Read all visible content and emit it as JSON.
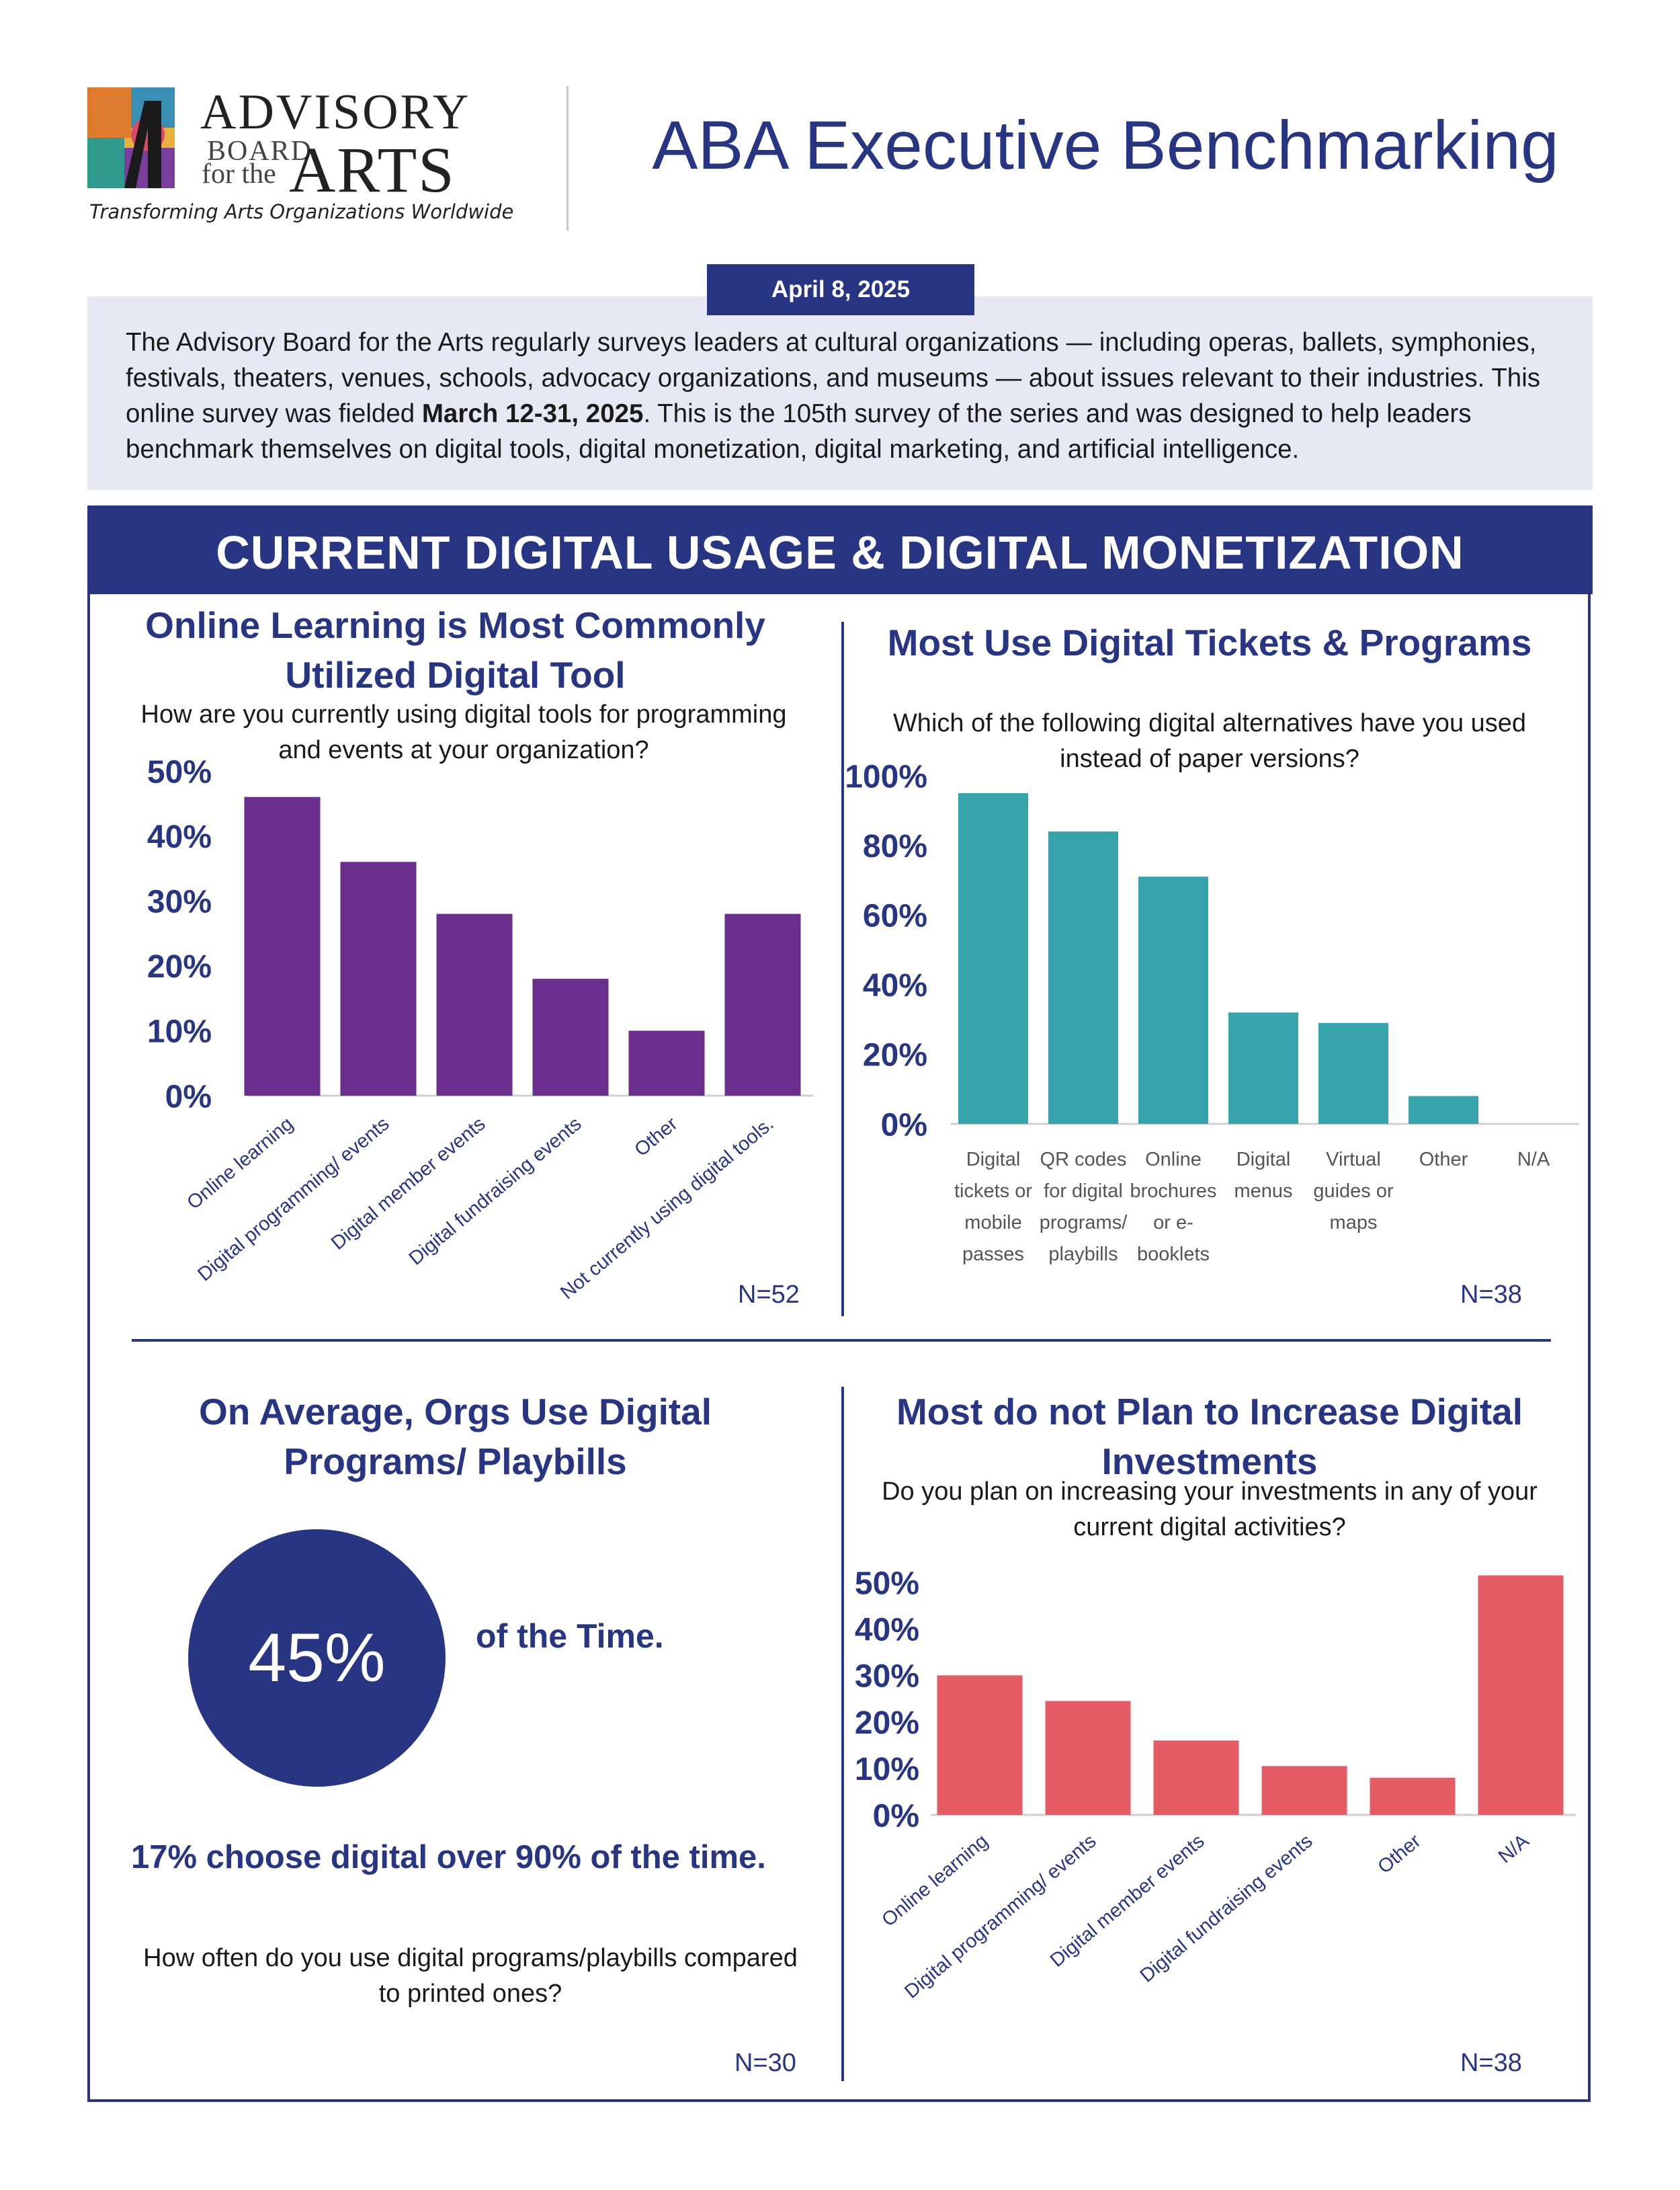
{
  "header": {
    "logo": {
      "line1": "ADVISORY",
      "line2": "BOARD",
      "line3": "for the",
      "line4": "ARTS",
      "tagline": "Transforming Arts Organizations Worldwide"
    },
    "title": "ABA Executive Benchmarking"
  },
  "intro": {
    "date": "April 8, 2025",
    "text_before": "The Advisory Board for the Arts regularly surveys leaders at cultural organizations — including operas, ballets, symphonies, festivals, theaters, venues, schools, advocacy organizations, and museums — about issues relevant to their industries. This online survey was fielded ",
    "text_bold": "March 12-31, 2025",
    "text_after": ". This is the 105th survey of the series and was designed to help leaders benchmark themselves on digital tools, digital monetization, digital marketing, and artificial intelligence."
  },
  "section": {
    "title": "CURRENT DIGITAL USAGE & DIGITAL MONETIZATION"
  },
  "panels": {
    "tools": {
      "title_line1": "Online Learning is Most Commonly",
      "title_line2": "Utilized Digital Tool",
      "question": "How are you currently using digital tools for programming and events at your organization?",
      "n": "N=52"
    },
    "tickets": {
      "title": "Most Use Digital Tickets & Programs",
      "question": "Which of the following digital alternatives have you used instead of paper versions?",
      "n": "N=38"
    },
    "playbills": {
      "title_line1": "On Average, Orgs Use Digital",
      "title_line2": "Programs/ Playbills",
      "big_value": "45%",
      "big_suffix": "of the Time.",
      "stat": "17% choose digital over 90% of the time.",
      "question": "How often do you use digital programs/playbills compared to printed ones?",
      "n": "N=30"
    },
    "investments": {
      "title_line1": "Most do not Plan to Increase Digital",
      "title_line2": "Investments",
      "question": "Do you plan on increasing your investments in any of your current digital activities?",
      "n": "N=38"
    }
  },
  "colors": {
    "navy": "#283583",
    "purple": "#6a2e8c",
    "teal": "#37a4ac",
    "coral": "#e55c66",
    "intro_bg": "#e6e9f4"
  },
  "chart_data": [
    {
      "type": "bar",
      "categories": [
        "Online learning",
        "Digital programming/ events",
        "Digital member events",
        "Digital fundraising events",
        "Other",
        "Not currently using digital tools."
      ],
      "values": [
        46,
        36,
        28,
        18,
        10,
        28
      ],
      "ylim": [
        0,
        50
      ],
      "yticks": [
        "0%",
        "10%",
        "20%",
        "30%",
        "40%",
        "50%"
      ],
      "color": "#6a2e8c"
    },
    {
      "type": "bar",
      "categories": [
        [
          "Digital",
          "tickets or",
          "mobile",
          "passes"
        ],
        [
          "QR codes",
          "for digital",
          "programs/",
          "playbills"
        ],
        [
          "Online",
          "brochures",
          "or e-",
          "booklets"
        ],
        [
          "Digital",
          "menus"
        ],
        [
          "Virtual",
          "guides or",
          "maps"
        ],
        [
          "Other"
        ],
        [
          "N/A"
        ]
      ],
      "values": [
        95,
        84,
        71,
        32,
        29,
        8,
        0
      ],
      "ylim": [
        0,
        100
      ],
      "yticks": [
        "0%",
        "20%",
        "40%",
        "60%",
        "80%",
        "100%"
      ],
      "color": "#37a4ac"
    },
    {
      "type": "bar",
      "categories": [
        "Online learning",
        "Digital programming/ events",
        "Digital member events",
        "Digital fundraising events",
        "Other",
        "N/A"
      ],
      "values": [
        30,
        24.5,
        16,
        10.5,
        8,
        51.5
      ],
      "ylim": [
        0,
        50
      ],
      "yticks": [
        "0%",
        "10%",
        "20%",
        "30%",
        "40%",
        "50%"
      ],
      "color": "#e55c66"
    }
  ]
}
